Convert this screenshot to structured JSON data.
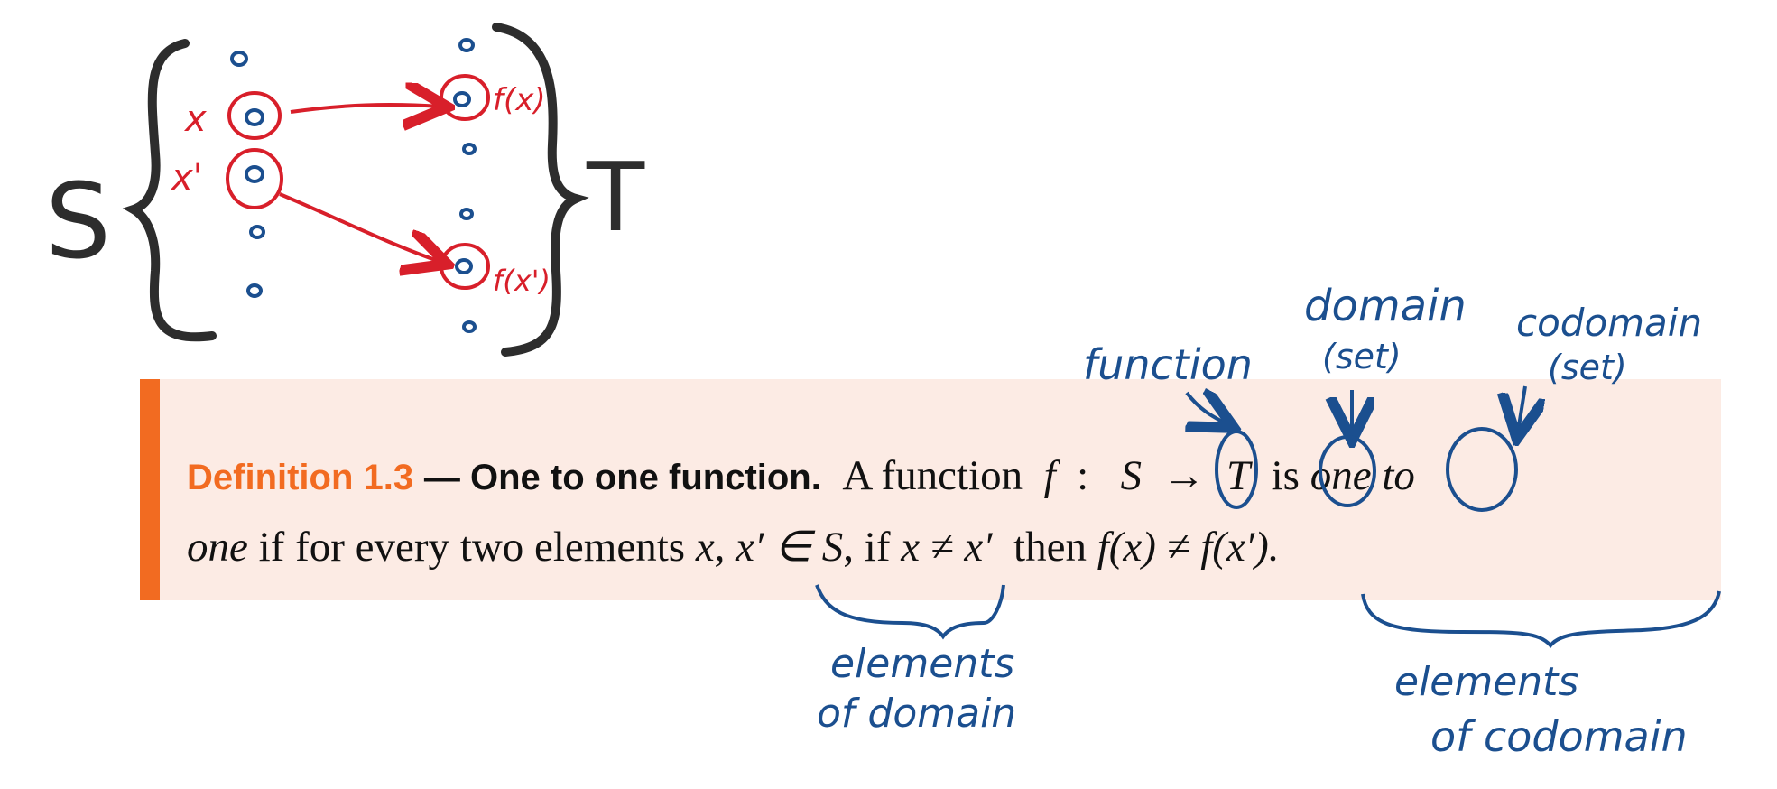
{
  "diagram": {
    "domain_label": "S",
    "codomain_label": "T",
    "x_label": "x",
    "x_prime_label": "x'",
    "fx_label": "f(x)",
    "fx_prime_label": "f(x')"
  },
  "definition": {
    "label": "Definition 1.3",
    "title": "— One to one function.",
    "line1": {
      "a_function": "A function",
      "f": "f",
      "colon": ":",
      "S": "S",
      "arrow": "→",
      "T": "T",
      "is": "is",
      "one_to": "one to"
    },
    "line2": {
      "one": "one",
      "text_a": "if for every two elements",
      "elems": "x, x′ ∈ S",
      "text_b": ", if",
      "cond": "x ≠ x′",
      "then": "then",
      "concl": "f(x) ≠ f(x′)."
    }
  },
  "annotations": {
    "function": "function",
    "domain": "domain",
    "domain_set": "(set)",
    "codomain": "codomain",
    "codomain_set": "(set)",
    "elements_domain_1": "elements",
    "elements_domain_2": "of domain",
    "elements_codomain_1": "elements",
    "elements_codomain_2": "of codomain"
  },
  "colors": {
    "accent": "#f26b21",
    "box_bg": "#fcebe4",
    "ink_blue": "#1b4f8f",
    "ink_red": "#d81f2a",
    "ink_black": "#2d2d2d"
  }
}
